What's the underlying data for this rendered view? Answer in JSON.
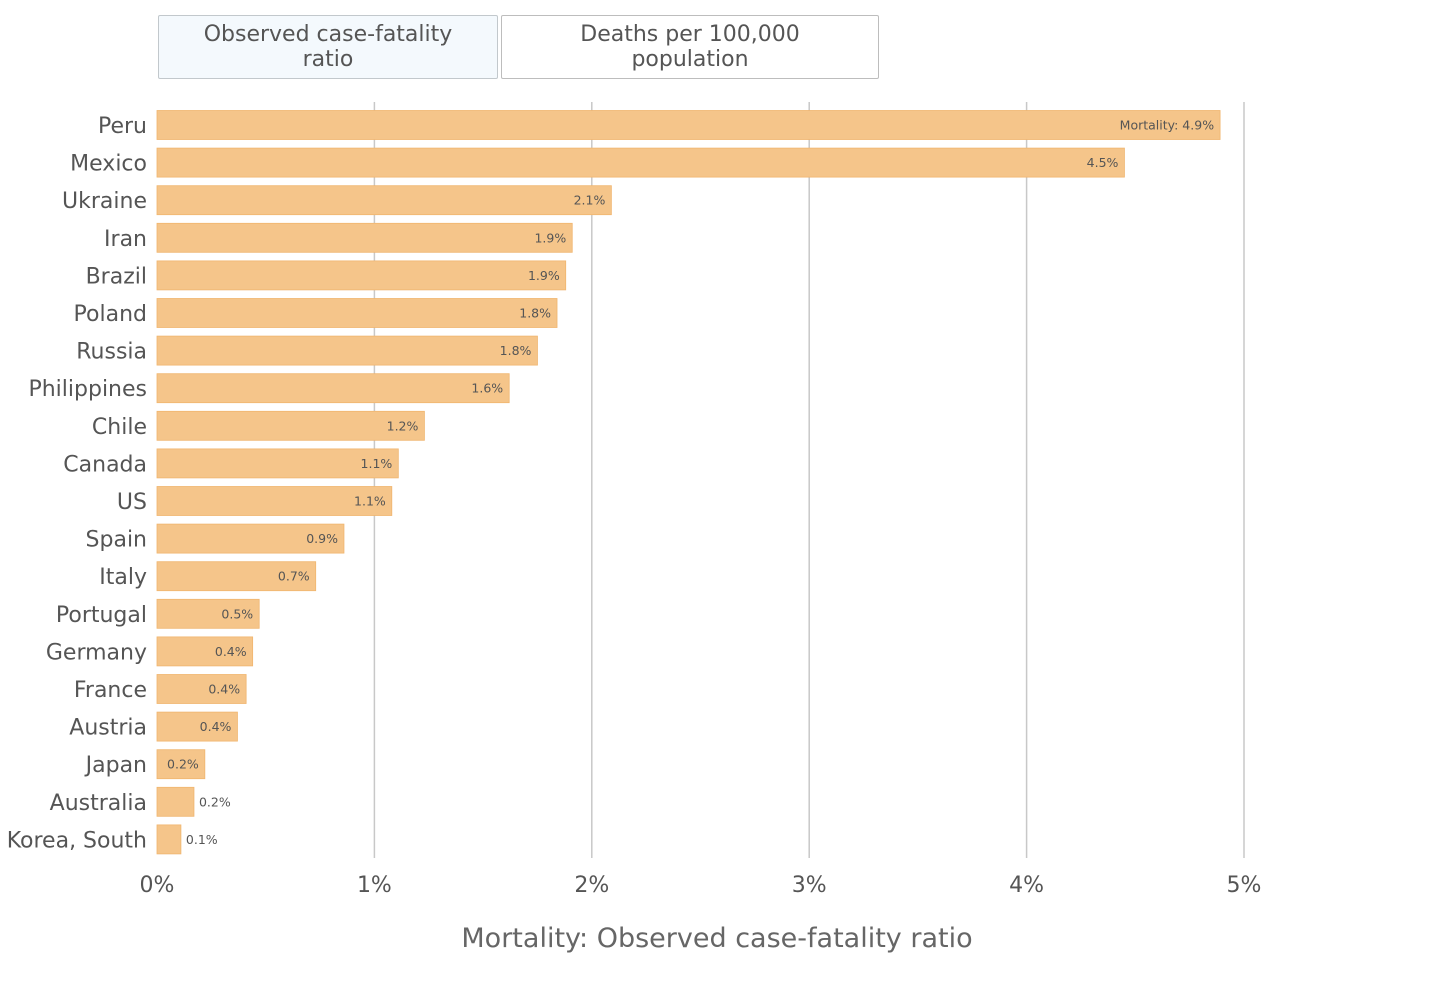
{
  "tabs": [
    {
      "label": "Observed case-fatality ratio",
      "active": true
    },
    {
      "label": "Deaths per 100,000 population",
      "active": false
    }
  ],
  "chart_data": {
    "type": "bar",
    "orientation": "horizontal",
    "categories": [
      "Peru",
      "Mexico",
      "Ukraine",
      "Iran",
      "Brazil",
      "Poland",
      "Russia",
      "Philippines",
      "Chile",
      "Canada",
      "US",
      "Spain",
      "Italy",
      "Portugal",
      "Germany",
      "France",
      "Austria",
      "Japan",
      "Australia",
      "Korea, South"
    ],
    "values": [
      4.89,
      4.45,
      2.09,
      1.91,
      1.88,
      1.84,
      1.75,
      1.62,
      1.23,
      1.11,
      1.08,
      0.86,
      0.73,
      0.47,
      0.44,
      0.41,
      0.37,
      0.22,
      0.17,
      0.11
    ],
    "value_labels": [
      "Mortality: 4.9%",
      "4.5%",
      "2.1%",
      "1.9%",
      "1.9%",
      "1.8%",
      "1.8%",
      "1.6%",
      "1.2%",
      "1.1%",
      "1.1%",
      "0.9%",
      "0.7%",
      "0.5%",
      "0.4%",
      "0.4%",
      "0.4%",
      "0.2%",
      "0.2%",
      "0.1%"
    ],
    "xlabel": "Mortality: Observed case-fatality ratio",
    "xticks": [
      "0%",
      "1%",
      "2%",
      "3%",
      "4%",
      "5%"
    ],
    "xlim": [
      0,
      5
    ],
    "grid": true,
    "bar_color": "#f5c58a"
  }
}
